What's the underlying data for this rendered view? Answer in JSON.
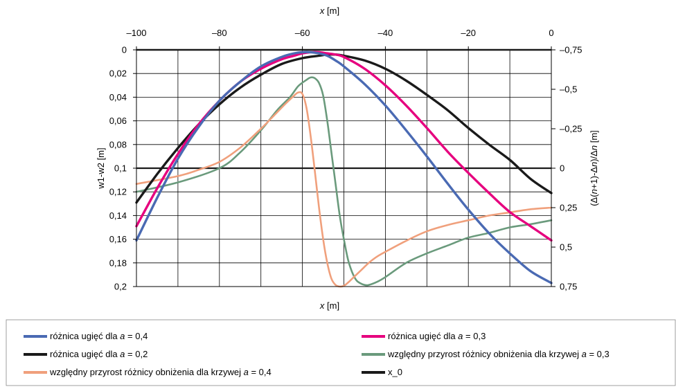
{
  "chart_data": {
    "type": "line",
    "x_top_axis": {
      "label_var": "x",
      "label_unit": " [m]",
      "range": [
        -100,
        0
      ],
      "ticks": [
        {
          "v": -100,
          "t": "–100"
        },
        {
          "v": -80,
          "t": "–80"
        },
        {
          "v": -60,
          "t": "–60"
        },
        {
          "v": -40,
          "t": "–40"
        },
        {
          "v": -20,
          "t": "–20"
        },
        {
          "v": 0,
          "t": "0"
        }
      ],
      "gridlines": [
        -100,
        -90,
        -80,
        -70,
        -60,
        -50,
        -40,
        -30,
        -20,
        -10,
        0
      ]
    },
    "x_bottom_axis": {
      "label_var": "x",
      "label_unit": " [m]"
    },
    "y_left_axis": {
      "label": "w1-w2 [m]",
      "range": [
        0,
        0.2
      ],
      "inverted": true,
      "ticks": [
        {
          "v": 0,
          "t": "0"
        },
        {
          "v": 0.02,
          "t": "0,02"
        },
        {
          "v": 0.04,
          "t": "0,04"
        },
        {
          "v": 0.06,
          "t": "0,06"
        },
        {
          "v": 0.08,
          "t": "0,08"
        },
        {
          "v": 0.1,
          "t": "0,1"
        },
        {
          "v": 0.12,
          "t": "0,12"
        },
        {
          "v": 0.14,
          "t": "0,14"
        },
        {
          "v": 0.16,
          "t": "0,16"
        },
        {
          "v": 0.18,
          "t": "0,18"
        },
        {
          "v": 0.2,
          "t": "0,2"
        }
      ]
    },
    "y_right_axis": {
      "label_open": "(",
      "label_d1": "Δ",
      "label_p1": "(",
      "label_n1": "n",
      "label_p2": "+1)-",
      "label_d2": "Δ",
      "label_n2": "n",
      "label_p3": ")/",
      "label_d3": "Δ",
      "label_n3": "n",
      "label_unit": "  [m]",
      "range": [
        -0.75,
        0.75
      ],
      "ticks": [
        {
          "v": -0.75,
          "t": "–0,75"
        },
        {
          "v": -0.5,
          "t": "–0,5"
        },
        {
          "v": -0.25,
          "t": "–0,25"
        },
        {
          "v": 0,
          "t": "0"
        },
        {
          "v": 0.25,
          "t": "0,25"
        },
        {
          "v": 0.5,
          "t": "0,5"
        },
        {
          "v": 0.75,
          "t": "0,75"
        }
      ]
    },
    "series": [
      {
        "name_pre": "różnica ugięć dla ",
        "name_var": "a",
        "name_post": " = 0,4",
        "color": "#4a6ab3",
        "axis": "left",
        "x": [
          -100,
          -95,
          -90,
          -85,
          -80,
          -75,
          -70,
          -65,
          -62,
          -60,
          -58,
          -56,
          -54,
          -52,
          -50,
          -45,
          -40,
          -35,
          -30,
          -25,
          -20,
          -15,
          -10,
          -5,
          0
        ],
        "y": [
          0.161,
          0.125,
          0.092,
          0.065,
          0.043,
          0.027,
          0.014,
          0.006,
          0.003,
          0.002,
          0.002,
          0.003,
          0.005,
          0.009,
          0.014,
          0.029,
          0.047,
          0.068,
          0.09,
          0.113,
          0.135,
          0.155,
          0.172,
          0.187,
          0.197
        ]
      },
      {
        "name_pre": "różnica ugięć dla ",
        "name_var": "a",
        "name_post": " = 0,3",
        "color": "#e6007e",
        "axis": "left",
        "x": [
          -100,
          -95,
          -90,
          -85,
          -80,
          -75,
          -70,
          -65,
          -62,
          -60,
          -58,
          -56,
          -54,
          -52,
          -50,
          -45,
          -40,
          -35,
          -30,
          -25,
          -20,
          -15,
          -10,
          -5,
          0
        ],
        "y": [
          0.149,
          0.117,
          0.088,
          0.063,
          0.043,
          0.027,
          0.016,
          0.008,
          0.005,
          0.003,
          0.002,
          0.002,
          0.003,
          0.004,
          0.006,
          0.016,
          0.03,
          0.047,
          0.066,
          0.086,
          0.104,
          0.121,
          0.137,
          0.149,
          0.161
        ]
      },
      {
        "name_pre": "różnica ugięć dla ",
        "name_var": "a",
        "name_post": " = 0,2",
        "color": "#1a1a1a",
        "axis": "left",
        "x": [
          -100,
          -95,
          -90,
          -85,
          -80,
          -75,
          -70,
          -65,
          -60,
          -56,
          -54,
          -52,
          -50,
          -45,
          -40,
          -35,
          -30,
          -25,
          -20,
          -15,
          -10,
          -5,
          0
        ],
        "y": [
          0.129,
          0.105,
          0.083,
          0.063,
          0.046,
          0.032,
          0.021,
          0.012,
          0.007,
          0.005,
          0.004,
          0.004,
          0.005,
          0.009,
          0.016,
          0.026,
          0.038,
          0.051,
          0.066,
          0.08,
          0.093,
          0.109,
          0.121
        ]
      },
      {
        "name_pre": "względny przyrost różnicy obniżenia dla krzywej ",
        "name_var": "a",
        "name_post": " = 0,3",
        "color": "#6a9a7c",
        "axis": "right",
        "x": [
          -100,
          -90,
          -80,
          -75,
          -70,
          -66,
          -63,
          -61,
          -59,
          -58,
          -57,
          -56,
          -55,
          -54,
          -53,
          -52,
          -51,
          -50,
          -49,
          -48,
          -47,
          -46,
          -45,
          -44,
          -42,
          -40,
          -35,
          -30,
          -25,
          -20,
          -15,
          -10,
          -5,
          0
        ],
        "y": [
          0.15,
          0.09,
          0.0,
          -0.1,
          -0.24,
          -0.37,
          -0.45,
          -0.52,
          -0.56,
          -0.575,
          -0.57,
          -0.54,
          -0.46,
          -0.3,
          -0.1,
          0.1,
          0.3,
          0.45,
          0.58,
          0.66,
          0.71,
          0.73,
          0.74,
          0.74,
          0.72,
          0.69,
          0.6,
          0.54,
          0.49,
          0.44,
          0.41,
          0.375,
          0.355,
          0.33
        ]
      },
      {
        "name_pre": "względny przyrost różnicy obniżenia dla krzywej ",
        "name_var": "a",
        "name_post": " = 0,4",
        "color": "#f0a07c",
        "axis": "right",
        "x": [
          -100,
          -90,
          -85,
          -80,
          -75,
          -70,
          -67,
          -64,
          -62,
          -61,
          -60,
          -59,
          -58,
          -57,
          -56,
          -55,
          -54,
          -53,
          -52,
          -51,
          -50,
          -49,
          -48,
          -46,
          -44,
          -42,
          -40,
          -35,
          -30,
          -25,
          -20,
          -15,
          -10,
          -5,
          0
        ],
        "y": [
          0.1,
          0.05,
          0.01,
          -0.04,
          -0.13,
          -0.25,
          -0.33,
          -0.41,
          -0.46,
          -0.48,
          -0.47,
          -0.38,
          -0.2,
          0.02,
          0.25,
          0.45,
          0.6,
          0.7,
          0.74,
          0.75,
          0.745,
          0.725,
          0.7,
          0.65,
          0.6,
          0.56,
          0.53,
          0.46,
          0.4,
          0.36,
          0.33,
          0.3,
          0.28,
          0.26,
          0.25
        ]
      }
    ],
    "legend": {
      "position": "bottom",
      "entries": [
        {
          "pre": "różnica ugięć dla ",
          "var": "a",
          "post": " = 0,4",
          "color": "#4a6ab3"
        },
        {
          "pre": "różnica ugięć dla ",
          "var": "a",
          "post": " = 0,3",
          "color": "#e6007e"
        },
        {
          "pre": "różnica ugięć dla ",
          "var": "a",
          "post": " = 0,2",
          "color": "#1a1a1a"
        },
        {
          "pre": "względny przyrost różnicy obniżenia dla krzywej ",
          "var": "a",
          "post": " = 0,3",
          "color": "#6a9a7c"
        },
        {
          "pre": "względny przyrost różnicy obniżenia dla krzywej ",
          "var": "a",
          "post": " = 0,4",
          "color": "#f0a07c"
        },
        {
          "pre": "x_0",
          "var": "",
          "post": "",
          "color": "#1a1a1a"
        }
      ]
    },
    "grid": true
  }
}
